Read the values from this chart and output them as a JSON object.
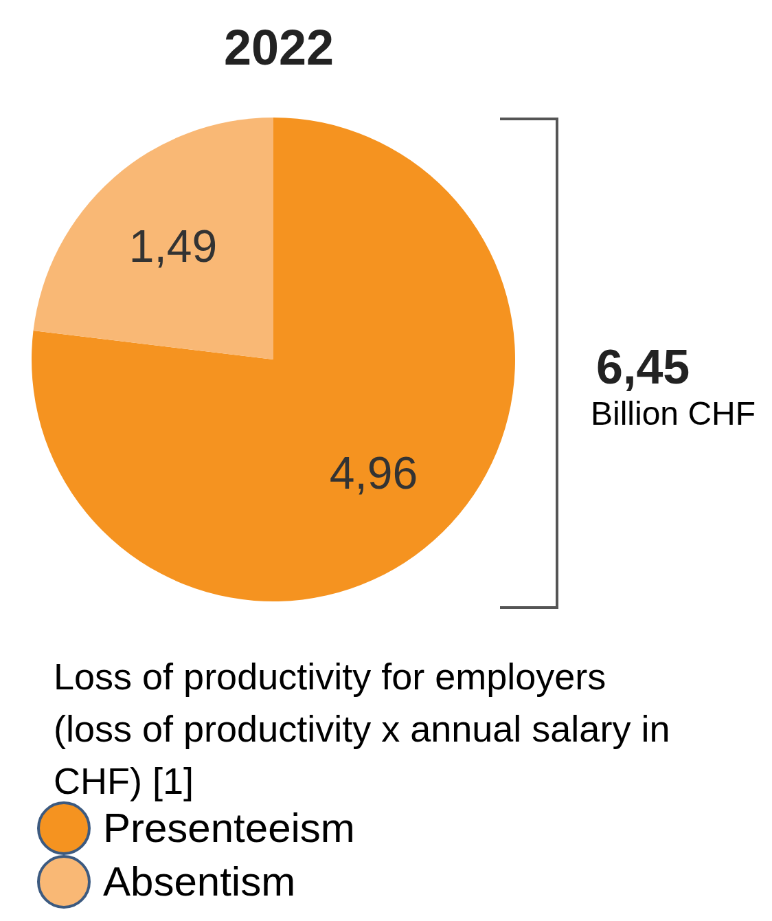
{
  "chart_data": {
    "type": "pie",
    "title": "2022",
    "categories": [
      "Presenteeism",
      "Absentism"
    ],
    "values": [
      4.96,
      1.49
    ],
    "value_labels": [
      "4,96",
      "1,49"
    ],
    "colors": [
      "#f59320",
      "#f9b875"
    ],
    "legend": "bottom",
    "legend_title": "Loss of productivity for employers (loss of productivity x annual salary in CHF) [1]",
    "annotations": [
      "6,45",
      "Billion CHF"
    ]
  }
}
